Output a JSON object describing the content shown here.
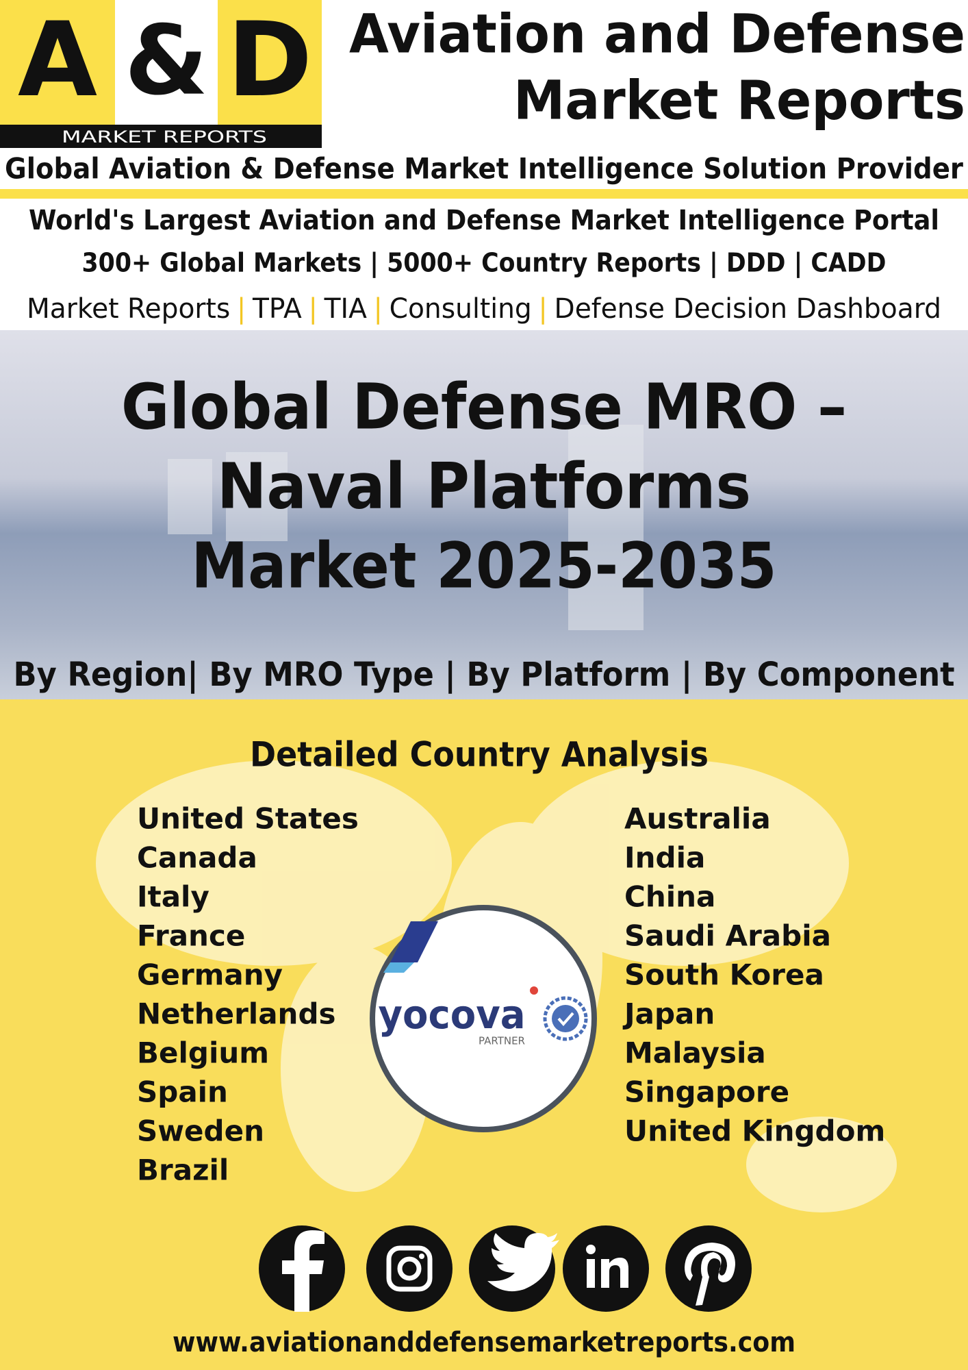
{
  "logo": {
    "letters": [
      "A",
      "&",
      "D"
    ],
    "subtitle": "MARKET REPORTS"
  },
  "header": {
    "title_lines": [
      "Aviation and Defense",
      "Market Reports"
    ],
    "tagline": "Global Aviation & Defense Market Intelligence Solution Provider"
  },
  "portal": {
    "headline": "World's Largest Aviation and Defense Market Intelligence Portal",
    "stats": "300+ Global Markets | 5000+ Country Reports | DDD | CADD",
    "services": [
      "Market Reports",
      "TPA",
      "TIA",
      "Consulting",
      "Defense Decision Dashboard"
    ],
    "separator": "|"
  },
  "banner": {
    "title_lines": [
      "Global Defense MRO –",
      "Naval Platforms",
      "Market 2025-2035"
    ],
    "segments": "By Region| By MRO Type | By Platform | By Component"
  },
  "countries": {
    "heading": "Detailed Country Analysis",
    "left": [
      "United States",
      "Canada",
      "Italy",
      "France",
      "Germany",
      "Netherlands",
      "Belgium",
      "Spain",
      "Sweden",
      "Brazil"
    ],
    "right": [
      "Australia",
      "India",
      "China",
      "Saudi Arabia",
      "South Korea",
      "Japan",
      "Malaysia",
      "Singapore",
      "United Kingdom"
    ]
  },
  "partner": {
    "name": "yocova",
    "label": "PARTNER"
  },
  "footer": {
    "website": "www.aviationanddefensemarketreports.com"
  }
}
